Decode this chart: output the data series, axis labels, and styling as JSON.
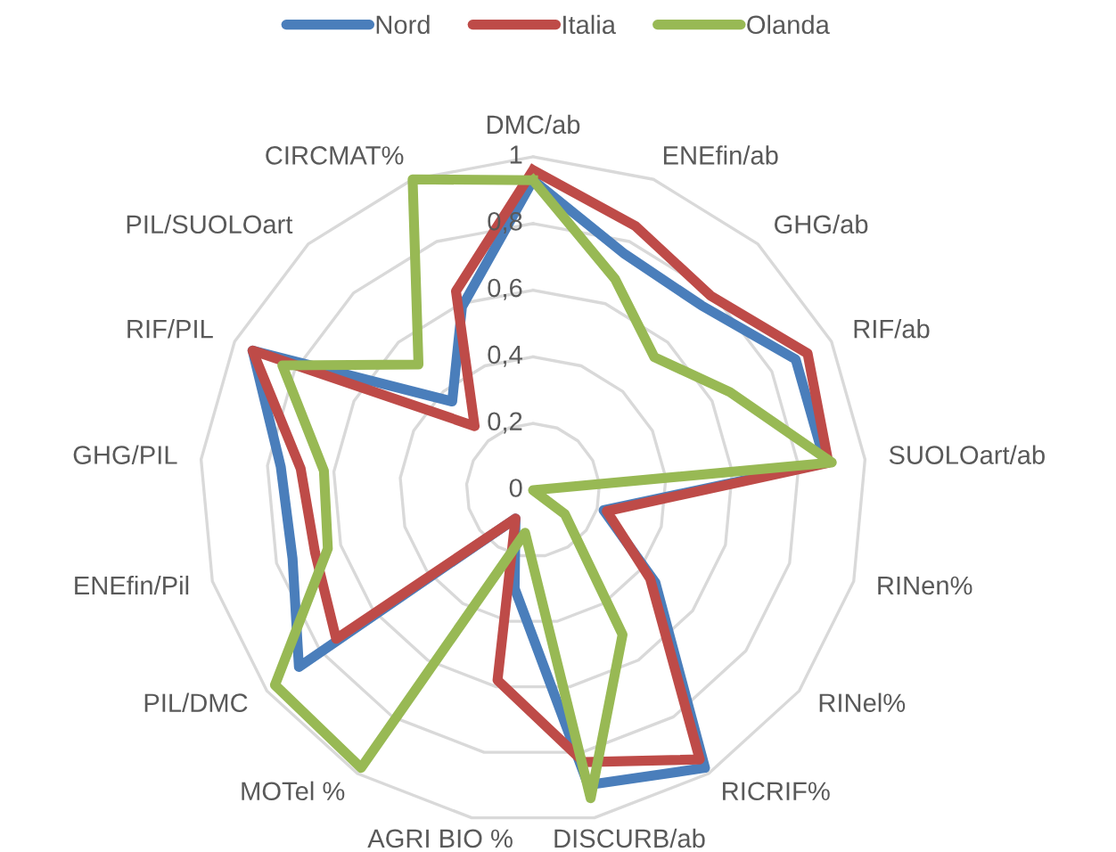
{
  "chart_data": {
    "type": "radar",
    "categories": [
      "DMC/ab",
      "ENEfin/ab",
      "GHG/ab",
      "RIF/ab",
      "SUOLOart/ab",
      "RINen%",
      "RINel%",
      "RICRIF%",
      "DISCURB/ab",
      "AGRI BIO %",
      "MOTel %",
      "PIL/DMC",
      "ENEfin/Pil",
      "GHG/PIL",
      "RIF/PIL",
      "PIL/SUOLOart",
      "CIRCMAT%"
    ],
    "series": [
      {
        "name": "Nord",
        "color": "#4a7ebb",
        "values": [
          0.93,
          0.76,
          0.75,
          0.88,
          0.88,
          0.22,
          0.46,
          0.98,
          0.9,
          0.3,
          0.1,
          0.88,
          0.75,
          0.76,
          0.94,
          0.36,
          0.59
        ]
      },
      {
        "name": "Italia",
        "color": "#be4b48",
        "values": [
          0.96,
          0.85,
          0.79,
          0.92,
          0.89,
          0.23,
          0.44,
          0.95,
          0.83,
          0.58,
          0.1,
          0.74,
          0.68,
          0.7,
          0.94,
          0.26,
          0.64
        ]
      },
      {
        "name": "Olanda",
        "color": "#98b954",
        "values": [
          0.93,
          0.68,
          0.54,
          0.66,
          0.9,
          0,
          0.12,
          0.51,
          0.94,
          0.13,
          0.98,
          0.97,
          0.64,
          0.63,
          0.84,
          0.51,
          1.0
        ]
      }
    ],
    "ylim": [
      0,
      1
    ],
    "yticks": [
      0,
      {
        "value": 0.2,
        "label": "0,2"
      },
      {
        "value": 0.4,
        "label": "0,4"
      },
      {
        "value": 0.6,
        "label": "0,6"
      },
      {
        "value": 0.8,
        "label": "0,8"
      },
      1
    ],
    "grid": true,
    "legend": "top"
  }
}
